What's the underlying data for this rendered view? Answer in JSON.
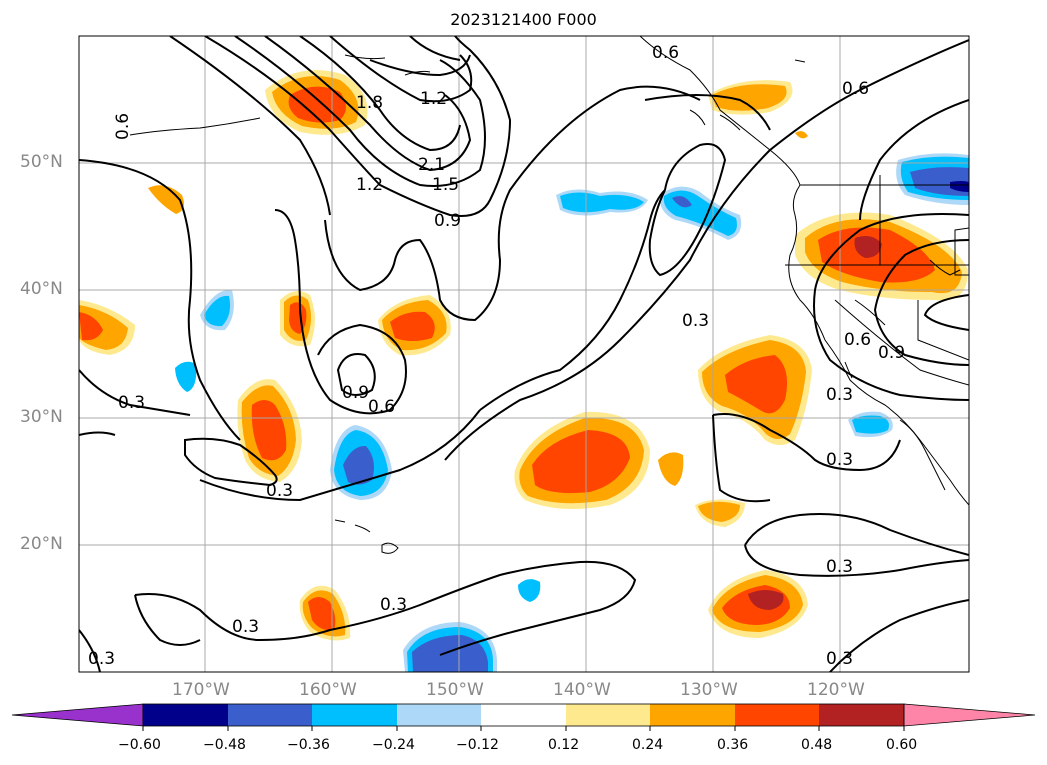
{
  "title": "2023121400 F000",
  "map": {
    "lon_labels": [
      "170°W",
      "160°W",
      "150°W",
      "140°W",
      "130°W",
      "120°W"
    ],
    "lat_labels": [
      "50°N",
      "40°N",
      "30°N",
      "20°N"
    ],
    "contour_labels": [
      "1.8",
      "1.2",
      "2.1",
      "1.5",
      "1.2",
      "0.9",
      "0.6",
      "0.6",
      "0.6",
      "0.3",
      "0.9",
      "0.6",
      "0.3",
      "0.3",
      "0.3",
      "0.6",
      "0.9",
      "0.3",
      "0.3",
      "0.3",
      "0.3",
      "0.3",
      "0.3"
    ]
  },
  "colorbar": {
    "ticks": [
      "−0.60",
      "−0.48",
      "−0.36",
      "−0.24",
      "−0.12",
      "0.12",
      "0.24",
      "0.36",
      "0.48",
      "0.60"
    ],
    "colors": [
      "#9932cc",
      "#00008b",
      "#3a5fcd",
      "#00bfff",
      "#add8f7",
      "#ffffff",
      "#ffe98f",
      "#ffa500",
      "#ff4500",
      "#b22222",
      "#ff85a8"
    ]
  }
}
